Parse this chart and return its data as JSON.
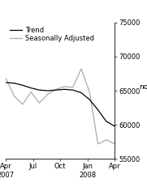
{
  "ylabel": "no.",
  "ylim": [
    55000,
    75000
  ],
  "yticks": [
    55000,
    60000,
    65000,
    70000,
    75000
  ],
  "xtick_labels": [
    "Apr\n2007",
    "Jul",
    "Oct",
    "Jan\n2008",
    "Apr"
  ],
  "xtick_pos": [
    0,
    3,
    6,
    9,
    12
  ],
  "xlim": [
    0,
    12
  ],
  "trend": [
    66200,
    66100,
    65800,
    65400,
    65100,
    65000,
    65100,
    65200,
    65100,
    64700,
    63700,
    62200,
    60500,
    59800
  ],
  "seasonal": [
    66800,
    64200,
    63000,
    64800,
    63200,
    64500,
    65200,
    65600,
    65500,
    68200,
    64800,
    57200,
    57800,
    57200
  ],
  "trend_color": "#000000",
  "seasonal_color": "#aaaaaa",
  "legend_trend": "Trend",
  "legend_seasonal": "Seasonally Adjusted",
  "background_color": "#ffffff",
  "linewidth_trend": 0.9,
  "linewidth_seasonal": 0.9,
  "fontsize_tick": 6,
  "fontsize_legend": 6,
  "fontsize_ylabel": 6.5
}
